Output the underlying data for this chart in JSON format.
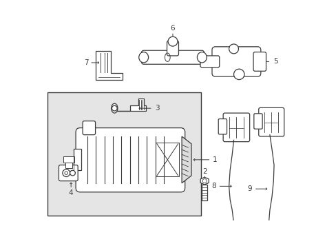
{
  "bg_color": "#ffffff",
  "line_color": "#3a3a3a",
  "box_bg": "#e8e8e8",
  "label_color": "#111111",
  "figsize": [
    4.89,
    3.6
  ],
  "dpi": 100,
  "xlim": [
    0,
    489
  ],
  "ylim": [
    0,
    360
  ]
}
